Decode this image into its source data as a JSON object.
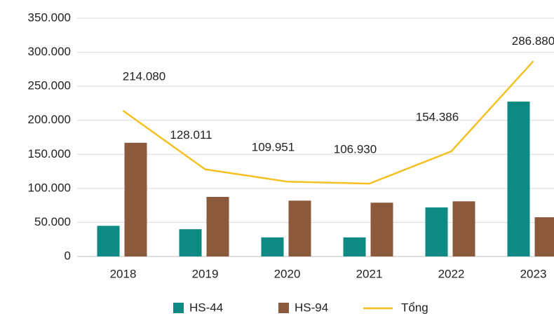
{
  "chart_data": {
    "type": "bar_line",
    "categories": [
      "2018",
      "2019",
      "2020",
      "2021",
      "2022",
      "2023"
    ],
    "series": [
      {
        "name": "HS-44",
        "color": "#0e8a85",
        "type": "bar",
        "values": [
          45000,
          40000,
          28000,
          28000,
          72000,
          227500
        ]
      },
      {
        "name": "HS-94",
        "color": "#8b5a3c",
        "type": "bar",
        "values": [
          167000,
          87500,
          82000,
          79000,
          81000,
          57600
        ]
      },
      {
        "name": "Tổng",
        "color": "#f5c022",
        "type": "line",
        "values": [
          214080,
          128011,
          109951,
          106930,
          154386,
          286880
        ],
        "value_labels": [
          "214.080",
          "128.011",
          "109.951",
          "106.930",
          "154.386",
          "286.880"
        ]
      }
    ],
    "ylim": [
      0,
      350000
    ],
    "yticks": [
      0,
      {
        "value": 50000,
        "label": "50.000"
      },
      {
        "value": 100000,
        "label": "100.000"
      },
      {
        "value": 150000,
        "label": "150.000"
      },
      {
        "value": 200000,
        "label": "200.000"
      },
      {
        "value": 250000,
        "label": "250.000"
      },
      {
        "value": 300000,
        "label": "300.000"
      },
      {
        "value": 350000,
        "label": "350.000"
      }
    ],
    "grid": true,
    "legend": "bottom"
  }
}
